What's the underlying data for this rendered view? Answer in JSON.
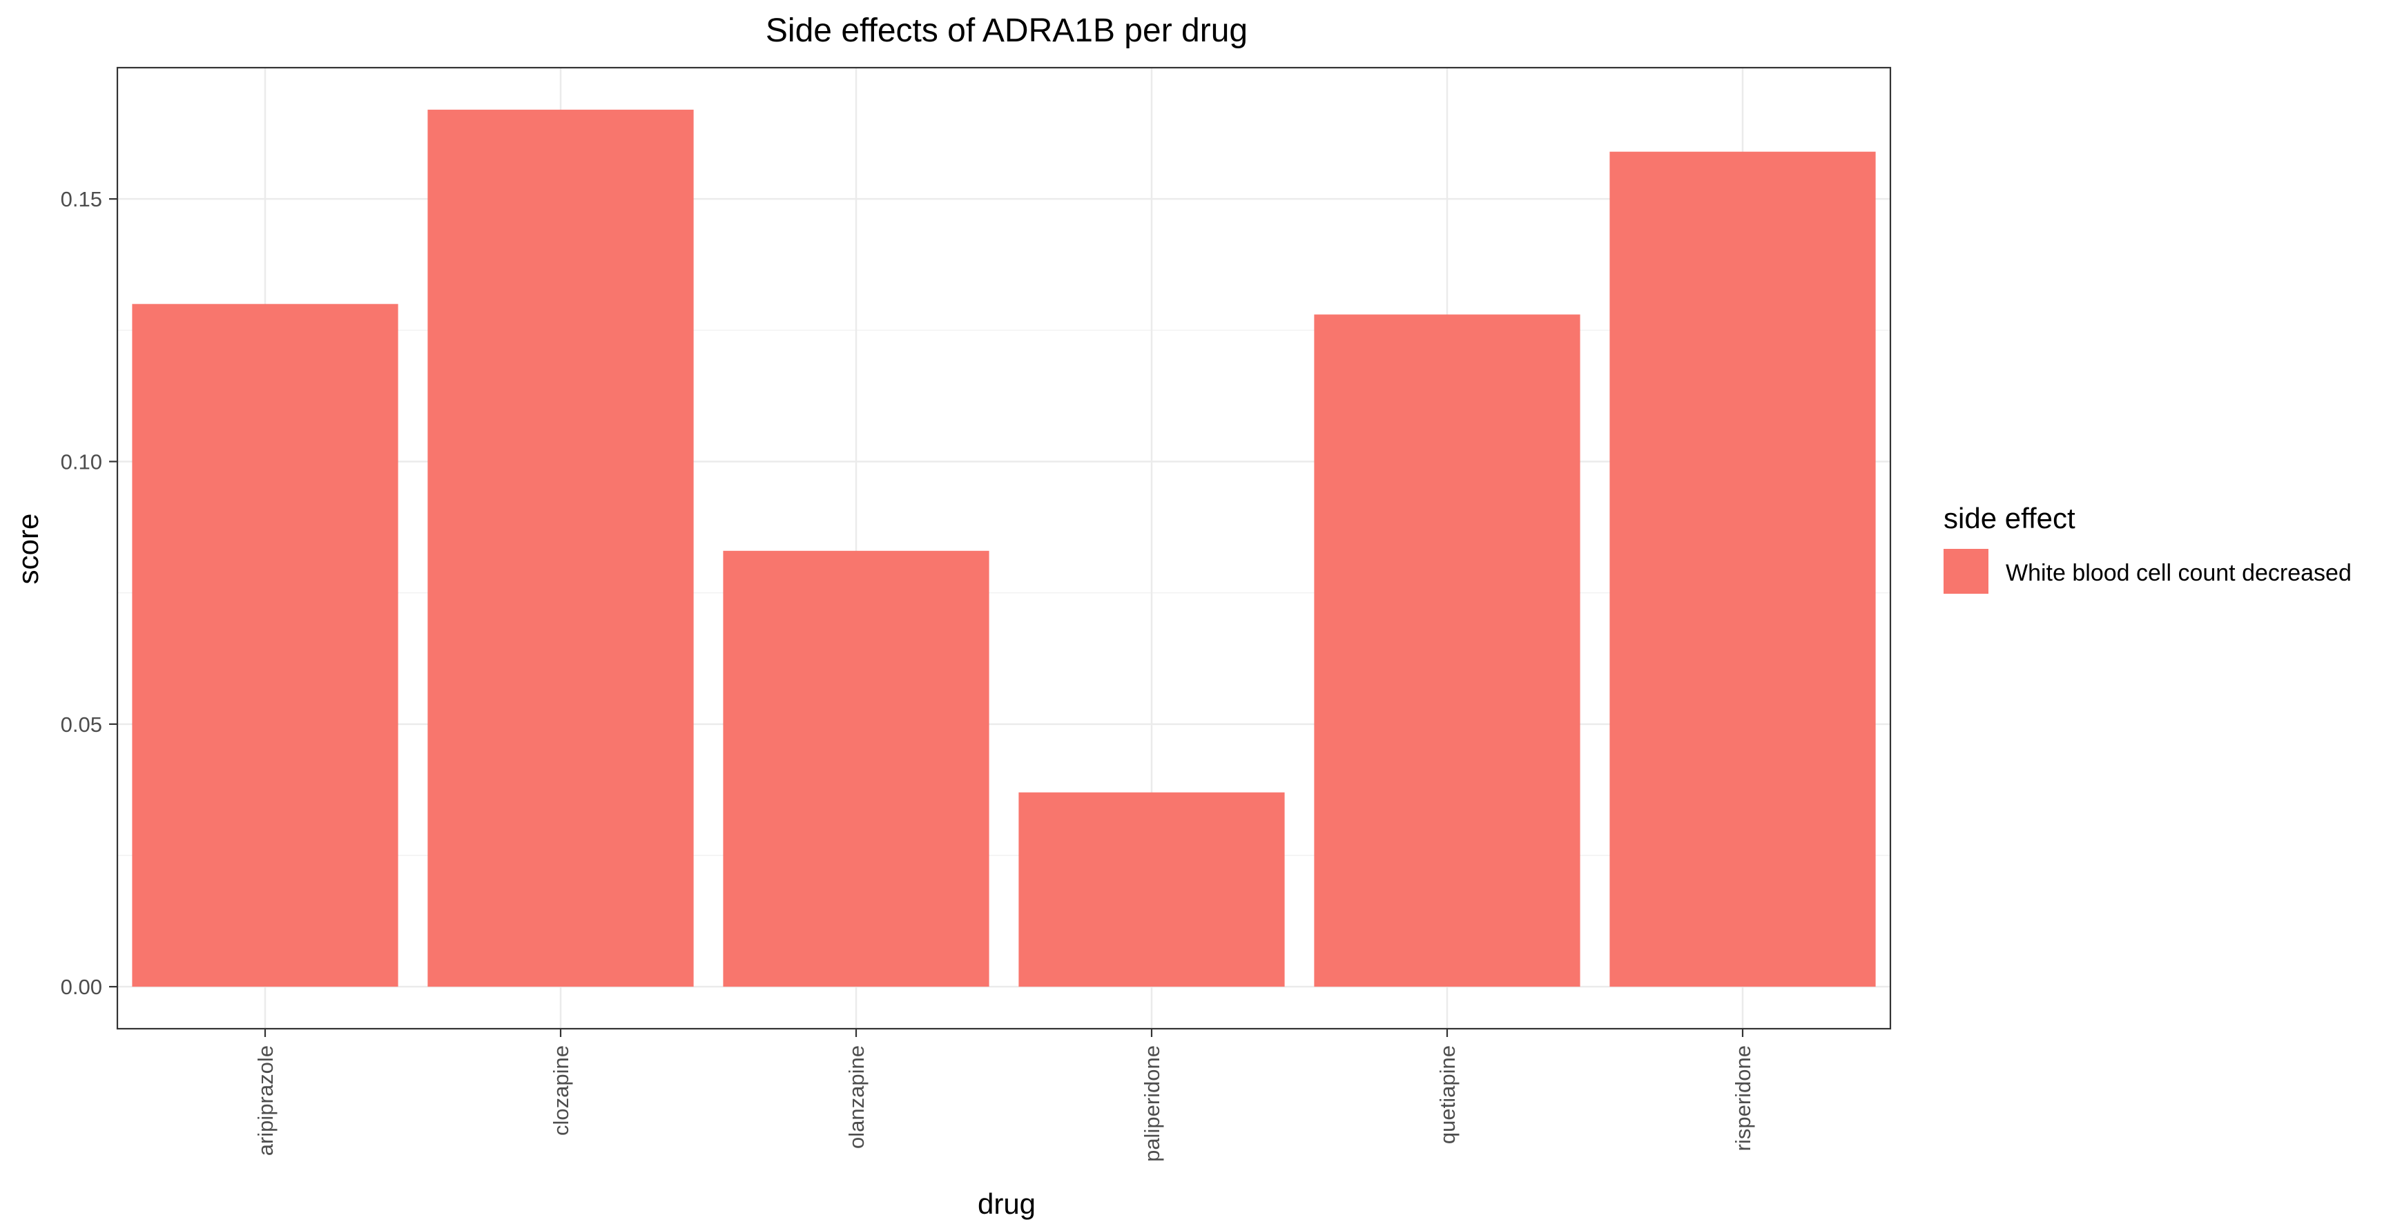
{
  "chart_data": {
    "type": "bar",
    "title": "Side effects of ADRA1B per drug",
    "xlabel": "drug",
    "ylabel": "score",
    "categories": [
      "aripiprazole",
      "clozapine",
      "olanzapine",
      "paliperidone",
      "quetiapine",
      "risperidone"
    ],
    "series": [
      {
        "name": "White blood cell count decreased",
        "color": "#F8766D",
        "values": [
          0.13,
          0.167,
          0.083,
          0.037,
          0.128,
          0.159
        ]
      }
    ],
    "ylim": [
      -0.008,
      0.175
    ],
    "yticks": [
      0.0,
      0.05,
      0.1,
      0.15
    ],
    "ytick_labels": [
      "0.00",
      "0.05",
      "0.10",
      "0.15"
    ],
    "grid": true,
    "legend": {
      "title": "side effect",
      "position": "right"
    }
  }
}
